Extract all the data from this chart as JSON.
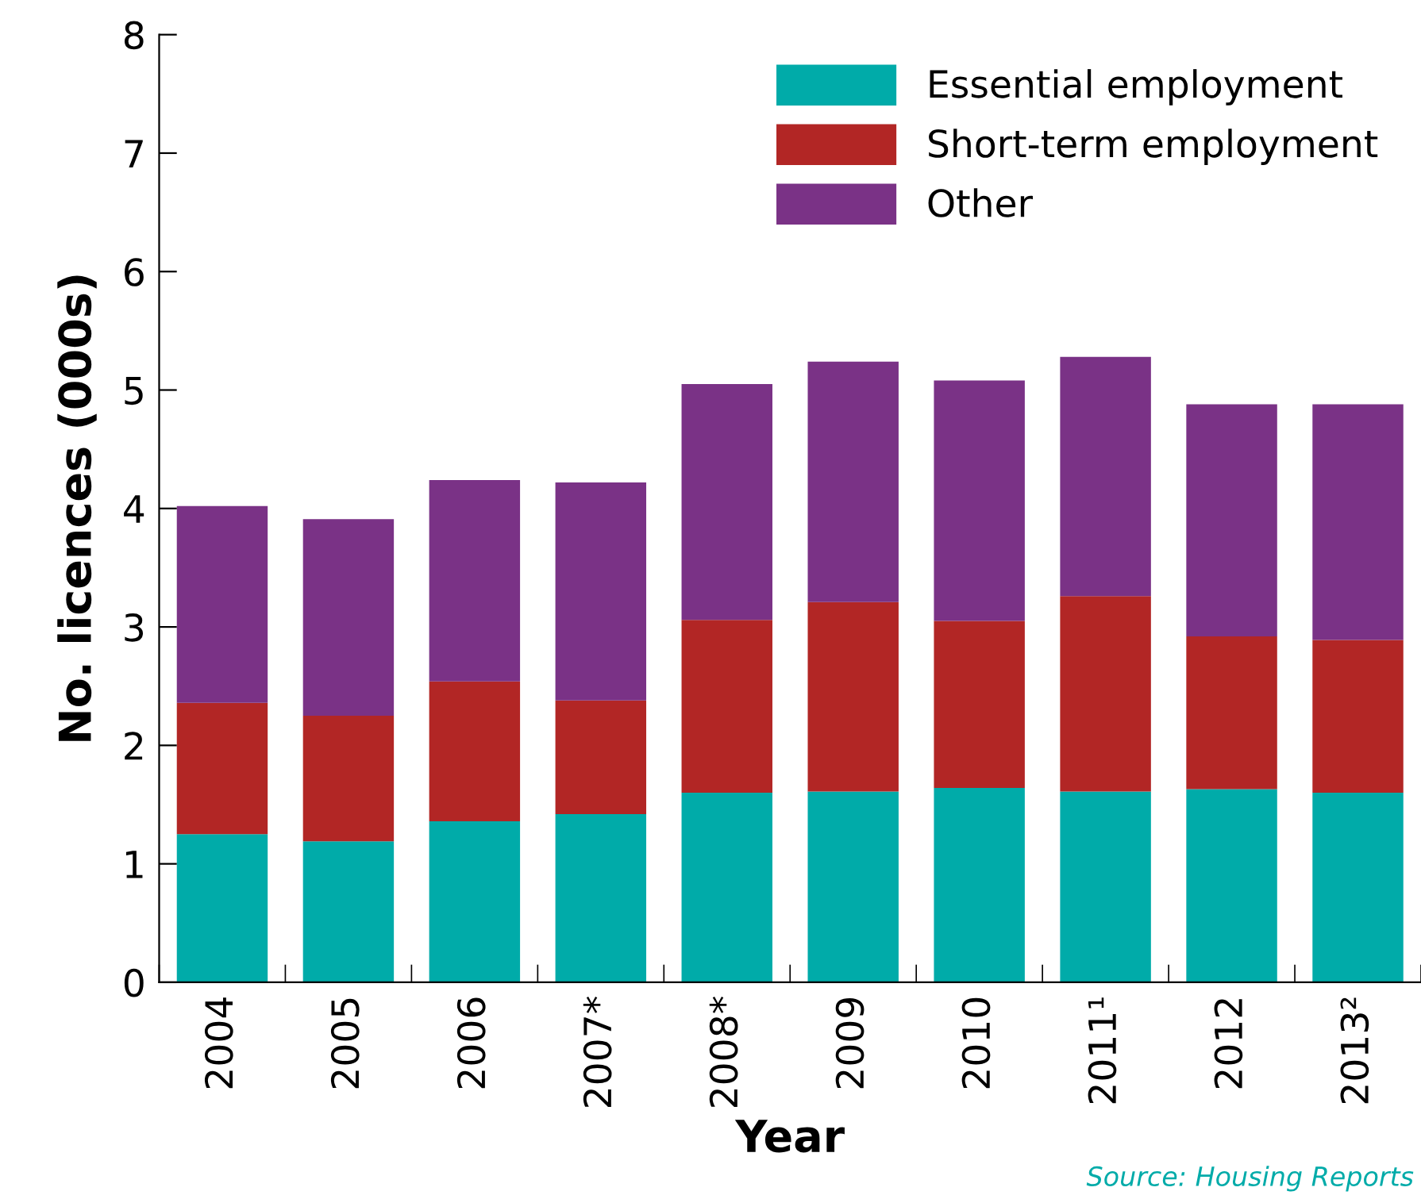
{
  "chart_data": {
    "type": "bar",
    "stacked": true,
    "xlabel": "Year",
    "ylabel": "No. licences (000s)",
    "categories": [
      "2004",
      "2005",
      "2006",
      "2007*",
      "2008*",
      "2009",
      "2010",
      "2011¹",
      "2012",
      "2013²"
    ],
    "series": [
      {
        "name": "Essential employment",
        "color": "#00aba9",
        "values": [
          1.25,
          1.19,
          1.36,
          1.42,
          1.6,
          1.61,
          1.64,
          1.61,
          1.63,
          1.6
        ]
      },
      {
        "name": "Short-term employment",
        "color": "#b22625",
        "values": [
          1.11,
          1.06,
          1.18,
          0.96,
          1.46,
          1.6,
          1.41,
          1.65,
          1.29,
          1.29
        ]
      },
      {
        "name": "Other",
        "color": "#7a3286",
        "values": [
          1.66,
          1.66,
          1.7,
          1.84,
          1.99,
          2.03,
          2.03,
          2.02,
          1.96,
          1.99
        ]
      }
    ],
    "ylim": [
      0,
      8
    ],
    "yticks": [
      0,
      1,
      2,
      3,
      4,
      5,
      6,
      7,
      8
    ],
    "grid": false,
    "legend": "top right",
    "annotations": [
      "Source: Housing Reports"
    ]
  }
}
